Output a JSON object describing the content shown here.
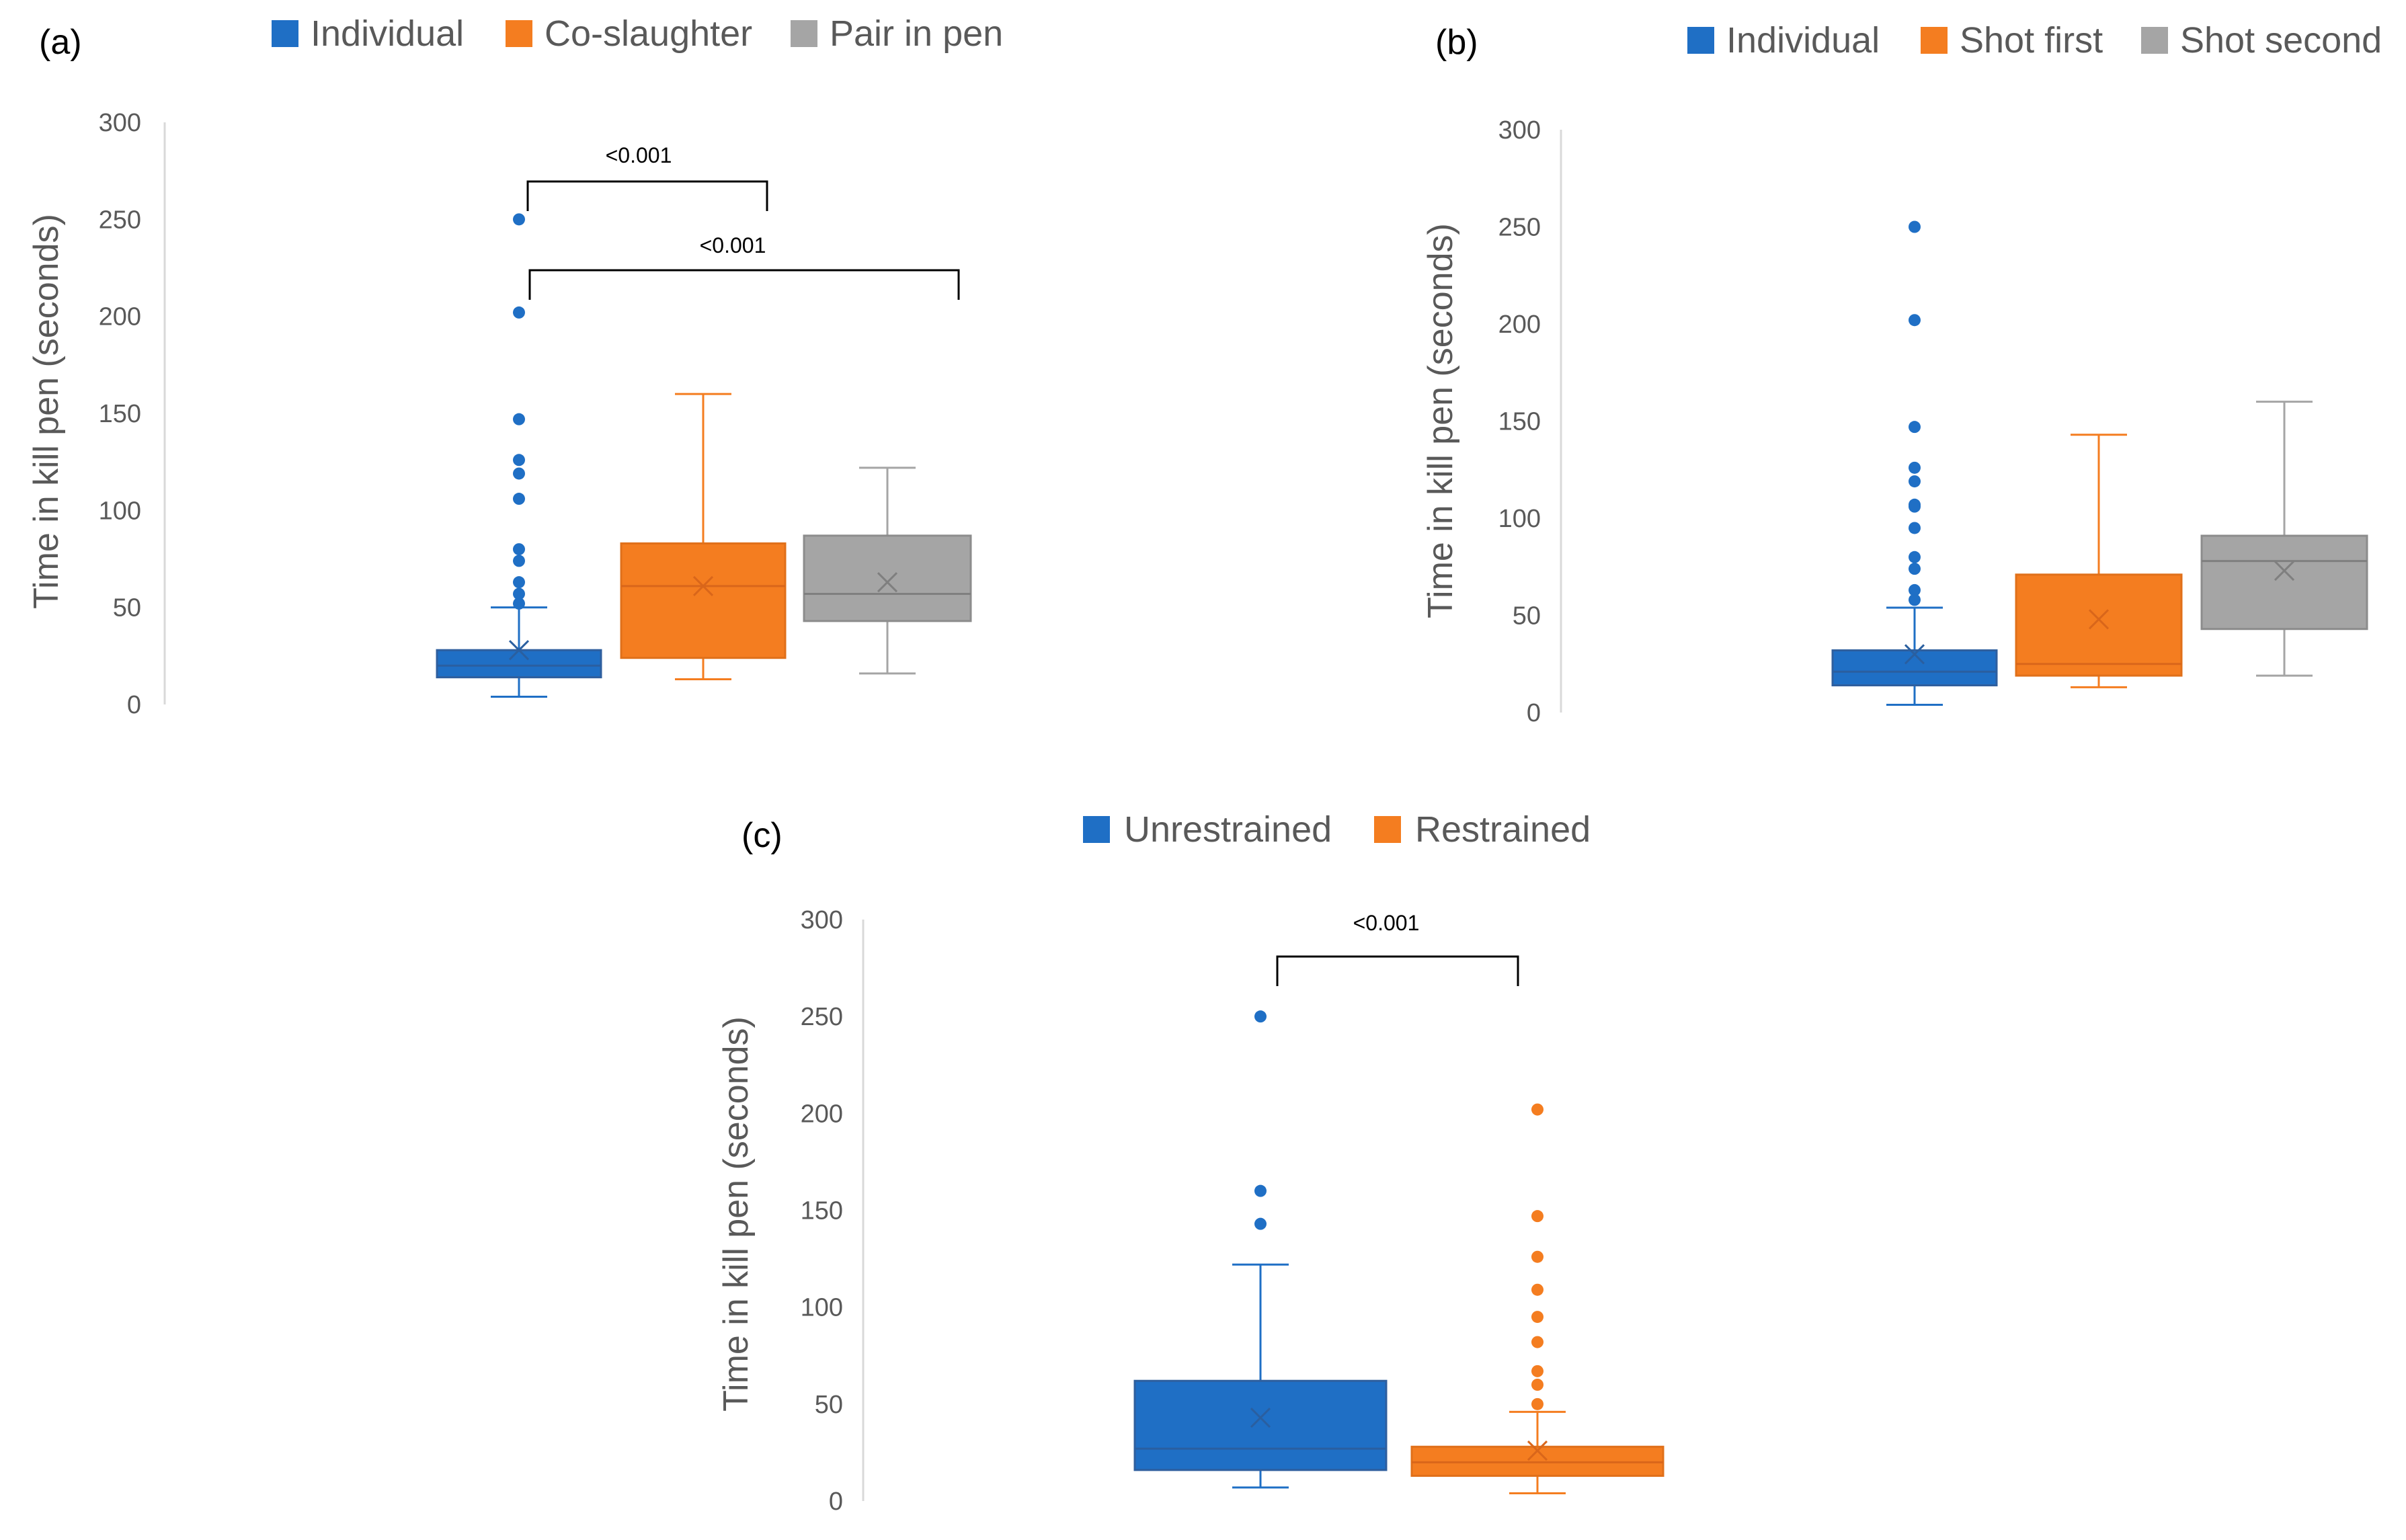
{
  "chart_data": [
    {
      "type": "boxplot",
      "panel_label": "(a)",
      "ylabel": "Time in kill pen (seconds)",
      "ylim": [
        0,
        300
      ],
      "yticks": [
        0,
        50,
        100,
        150,
        200,
        250,
        300
      ],
      "legend": [
        "Individual",
        "Co-slaughter",
        "Pair in pen"
      ],
      "series": [
        {
          "name": "Individual",
          "color": "#1F6FC5",
          "min": 4,
          "q1": 14,
          "median": 20,
          "q3": 28,
          "max": 50,
          "mean": 28,
          "outliers": [
            52,
            57,
            63,
            74,
            80,
            106,
            119,
            126,
            147,
            202,
            250
          ]
        },
        {
          "name": "Co-slaughter",
          "color": "#F47D20",
          "min": 13,
          "q1": 24,
          "median": 61,
          "q3": 83,
          "max": 160,
          "mean": 61,
          "outliers": []
        },
        {
          "name": "Pair in pen",
          "color": "#A5A5A5",
          "min": 16,
          "q1": 43,
          "median": 57,
          "q3": 87,
          "max": 122,
          "mean": 63,
          "outliers": []
        }
      ],
      "annotations": [
        {
          "from": 0,
          "to": 1,
          "text": "<0.001"
        },
        {
          "from": 0,
          "to": 2,
          "text": "<0.001"
        }
      ]
    },
    {
      "type": "boxplot",
      "panel_label": "(b)",
      "ylabel": "Time in kill pen (seconds)",
      "ylim": [
        0,
        300
      ],
      "yticks": [
        0,
        50,
        100,
        150,
        200,
        250,
        300
      ],
      "legend": [
        "Individual",
        "Shot first",
        "Shot second"
      ],
      "series": [
        {
          "name": "Individual",
          "color": "#1F6FC5",
          "min": 4,
          "q1": 14,
          "median": 21,
          "q3": 32,
          "max": 54,
          "mean": 30,
          "outliers": [
            58,
            63,
            74,
            80,
            95,
            106,
            107,
            119,
            126,
            147,
            202,
            250
          ]
        },
        {
          "name": "Shot first",
          "color": "#F47D20",
          "min": 13,
          "q1": 19,
          "median": 25,
          "q3": 71,
          "max": 143,
          "mean": 48,
          "outliers": []
        },
        {
          "name": "Shot second",
          "color": "#A5A5A5",
          "min": 19,
          "q1": 43,
          "median": 78,
          "q3": 91,
          "max": 160,
          "mean": 73,
          "outliers": []
        }
      ],
      "annotations": []
    },
    {
      "type": "boxplot",
      "panel_label": "(c)",
      "ylabel": "Time in kill pen (seconds)",
      "ylim": [
        0,
        300
      ],
      "yticks": [
        0,
        50,
        100,
        150,
        200,
        250,
        300
      ],
      "legend": [
        "Unrestrained",
        "Restrained"
      ],
      "series": [
        {
          "name": "Unrestrained",
          "color": "#1F6FC5",
          "min": 7,
          "q1": 16,
          "median": 27,
          "q3": 62,
          "max": 122,
          "mean": 43,
          "outliers": [
            143,
            160,
            250
          ]
        },
        {
          "name": "Restrained",
          "color": "#F47D20",
          "min": 4,
          "q1": 13,
          "median": 20,
          "q3": 28,
          "max": 46,
          "mean": 26,
          "outliers": [
            50,
            60,
            67,
            82,
            95,
            109,
            126,
            147,
            202
          ]
        }
      ],
      "annotations": [
        {
          "from": 0,
          "to": 1,
          "text": "<0.001"
        }
      ]
    }
  ]
}
